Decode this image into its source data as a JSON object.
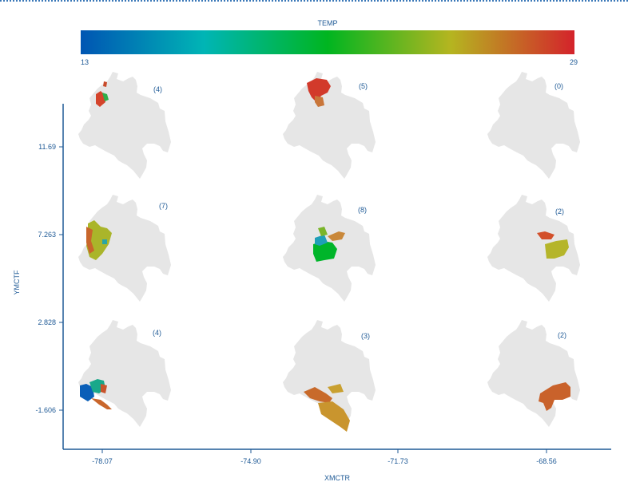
{
  "colorbar": {
    "title": "TEMP",
    "min_label": "13",
    "max_label": "29",
    "min": 13,
    "max": 29,
    "stops": [
      "#0055b3",
      "#00b5b5",
      "#00b520",
      "#b5b520",
      "#d4232b"
    ]
  },
  "colors": {
    "map_fill": "#e6e6e6",
    "axis": "#1f5a96"
  },
  "chart_data": {
    "type": "heatmap",
    "title": "",
    "xlabel": "XMCTR",
    "ylabel": "YMCTF",
    "x_ticks": [
      "-78.07",
      "-74.90",
      "-71.73",
      "-68.56"
    ],
    "y_ticks": [
      "11.69",
      "7.263",
      "2.828",
      "-1.606"
    ],
    "panels": [
      {
        "count": "(4)",
        "x": -78.07,
        "y": 11.69
      },
      {
        "count": "(5)",
        "x": -74.9,
        "y": 11.69
      },
      {
        "count": "(0)",
        "x": -71.73,
        "y": 11.69
      },
      {
        "count": "(7)",
        "x": -78.07,
        "y": 7.263
      },
      {
        "count": "(8)",
        "x": -74.9,
        "y": 7.263
      },
      {
        "count": "(2)",
        "x": -71.73,
        "y": 7.263
      },
      {
        "count": "(4)",
        "x": -78.07,
        "y": -1.606
      },
      {
        "count": "(3)",
        "x": -74.9,
        "y": -1.606
      },
      {
        "count": "(2)",
        "x": -71.73,
        "y": -1.606
      }
    ]
  }
}
